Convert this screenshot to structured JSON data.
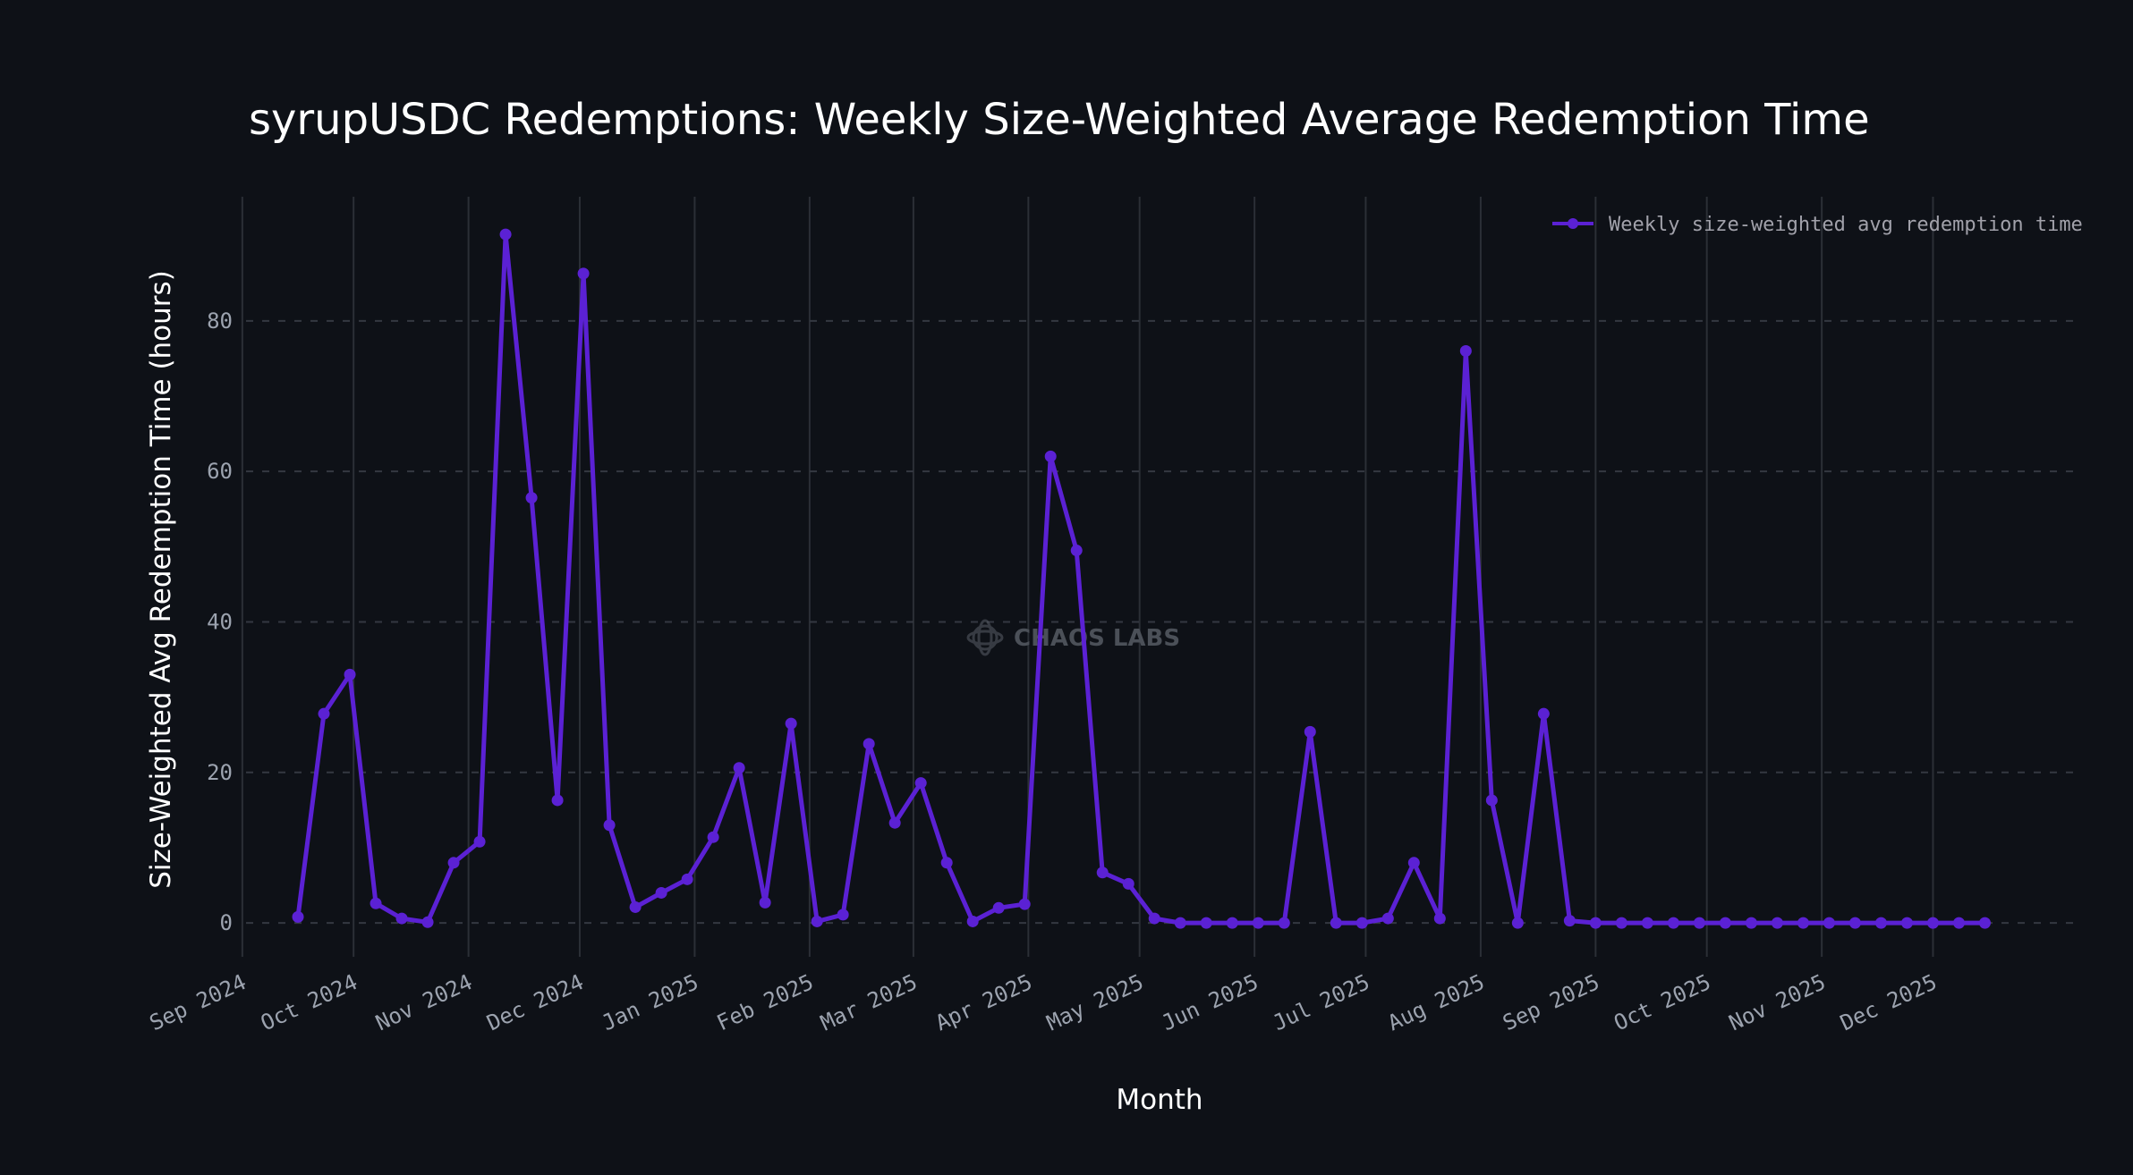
{
  "chart_data": {
    "type": "line",
    "title": "syrupUSDC Redemptions: Weekly Size-Weighted Average Redemption Time",
    "xlabel": "Month",
    "ylabel": "Size-Weighted Avg Redemption Time (hours)",
    "x_tick_labels": [
      "Sep 2024",
      "Oct 2024",
      "Nov 2024",
      "Dec 2024",
      "Jan 2025",
      "Feb 2025",
      "Mar 2025",
      "Apr 2025",
      "May 2025",
      "Jun 2025",
      "Jul 2025",
      "Aug 2025",
      "Sep 2025",
      "Oct 2025",
      "Nov 2025",
      "Dec 2025"
    ],
    "y_ticks": [
      0,
      20,
      40,
      60,
      80
    ],
    "ylim": [
      -4.5,
      96.5
    ],
    "x_range_weeks": [
      -2.0,
      68.5
    ],
    "grid": true,
    "legend_position": "top-right",
    "series": [
      {
        "name": "Weekly size-weighted avg redemption time",
        "color": "#5b21d4",
        "x_week_index": [
          0,
          1,
          2,
          3,
          4,
          5,
          6,
          7,
          8,
          9,
          10,
          11,
          12,
          13,
          14,
          15,
          16,
          17,
          18,
          19,
          20,
          21,
          22,
          23,
          24,
          25,
          26,
          27,
          28,
          29,
          30,
          31,
          32,
          33,
          34,
          35,
          36,
          37,
          38,
          39,
          40,
          41,
          42,
          43,
          44,
          45,
          46,
          47,
          48,
          49,
          50,
          51,
          52,
          53,
          54,
          55,
          56,
          57,
          58,
          59,
          60,
          61,
          62,
          63,
          64,
          65
        ],
        "values": [
          0.8,
          27.8,
          33.0,
          2.6,
          0.6,
          0.1,
          8.0,
          10.8,
          91.5,
          56.5,
          16.3,
          86.3,
          13.0,
          2.1,
          4.0,
          5.8,
          11.4,
          20.6,
          2.7,
          26.5,
          0.2,
          1.1,
          23.8,
          13.3,
          18.6,
          8.0,
          0.2,
          2.0,
          2.5,
          62.0,
          49.5,
          6.7,
          5.2,
          0.6,
          0.0,
          0.0,
          0.0,
          0.0,
          0.0,
          25.4,
          0.0,
          0.0,
          0.6,
          8.0,
          0.6,
          76.0,
          16.3,
          0.0,
          27.8,
          0.3,
          0.0,
          0.0,
          0.0,
          0.0,
          0.0,
          0.0,
          0.0,
          0.0,
          0.0,
          0.0,
          0.0,
          0.0,
          0.0,
          0.0,
          0.0,
          0.0
        ]
      }
    ],
    "watermark": "CHAOS LABS"
  }
}
